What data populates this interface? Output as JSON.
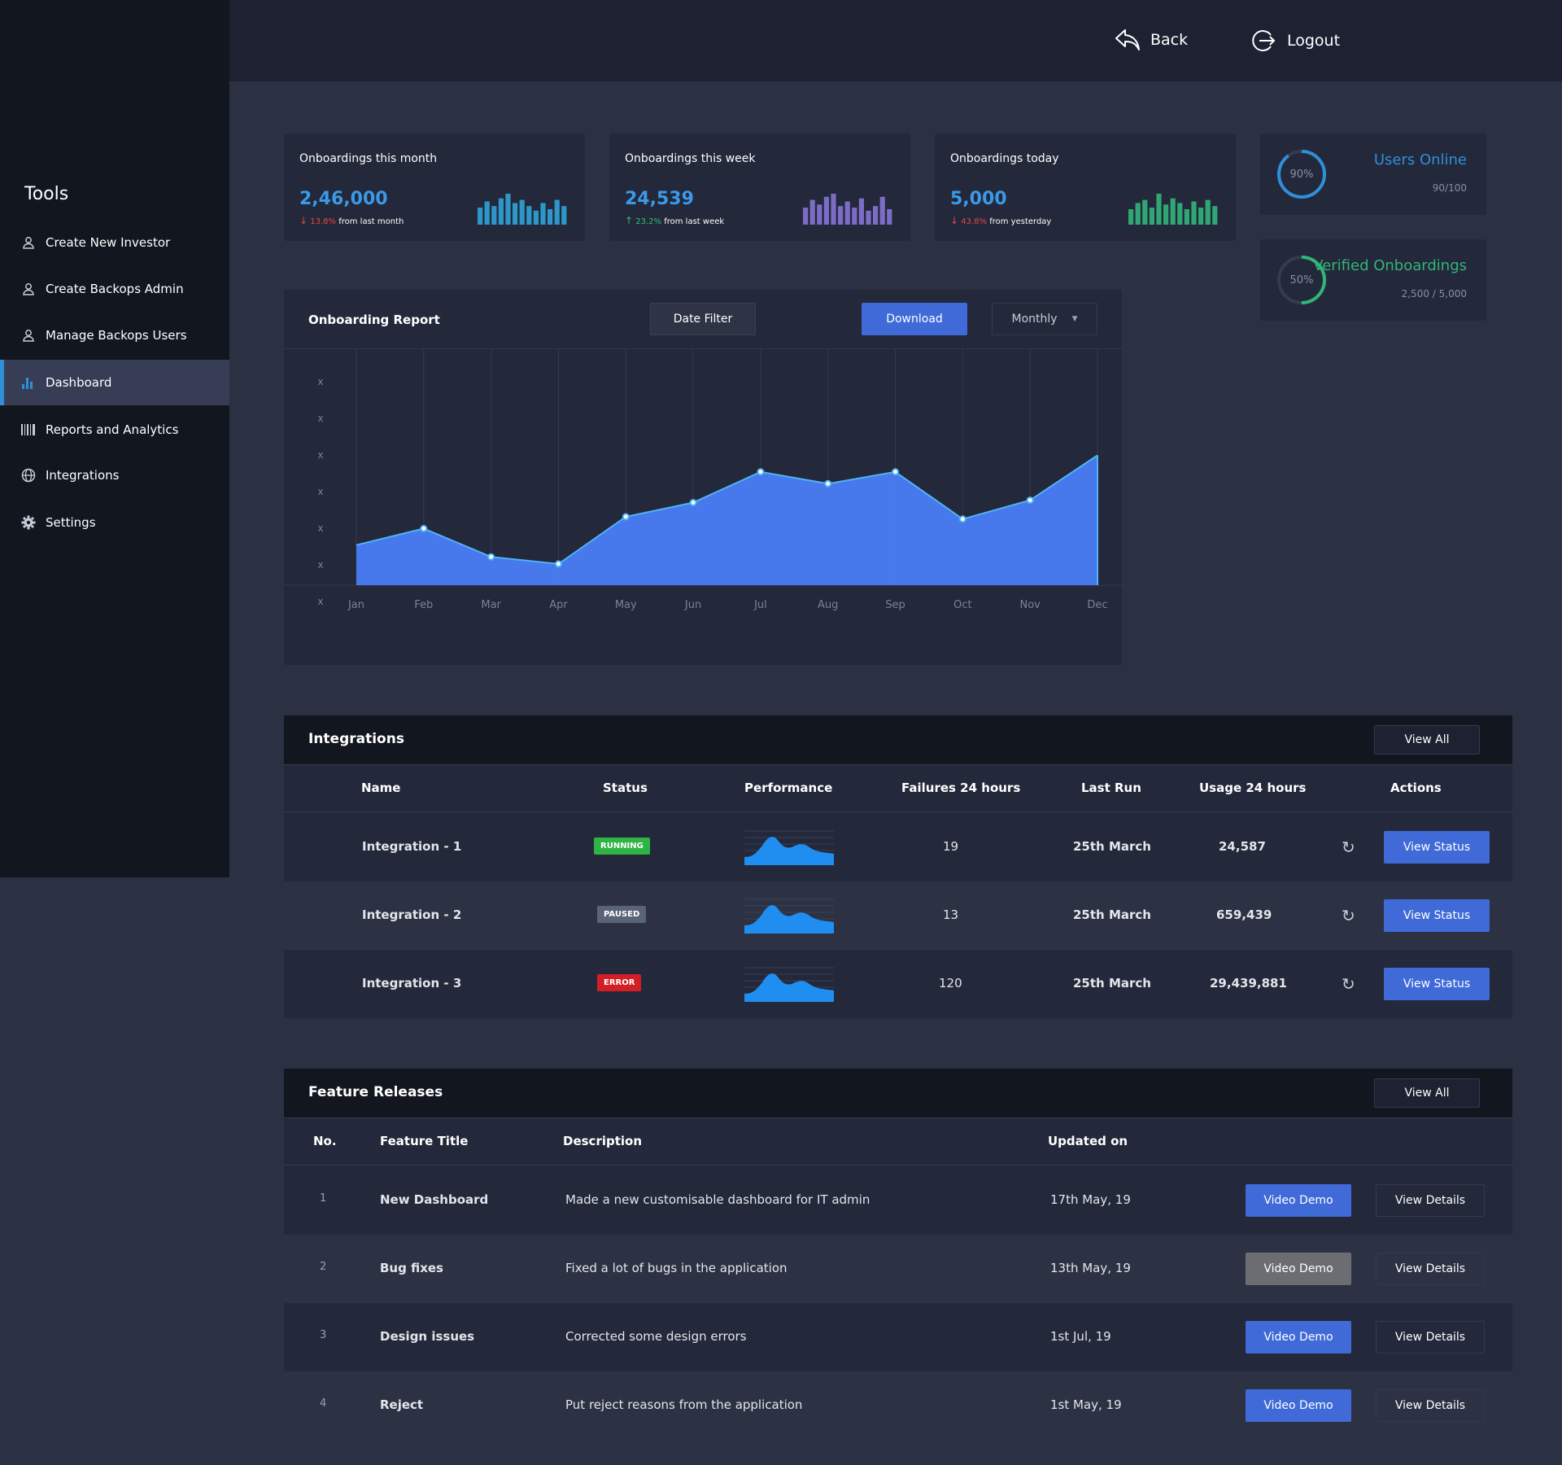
{
  "sidebar": {
    "title": "Tools",
    "items": [
      {
        "label": "Create New Investor",
        "icon": "user-icon"
      },
      {
        "label": "Create Backops Admin",
        "icon": "user-icon"
      },
      {
        "label": "Manage Backops Users",
        "icon": "user-icon"
      },
      {
        "label": "Dashboard",
        "icon": "bar-chart-icon",
        "active": true
      },
      {
        "label": "Reports and Analytics",
        "icon": "barcode-icon"
      },
      {
        "label": "Integrations",
        "icon": "globe-icon"
      },
      {
        "label": "Settings",
        "icon": "gear-icon"
      }
    ]
  },
  "topbar": {
    "back_label": "Back",
    "logout_label": "Logout"
  },
  "stats": [
    {
      "label": "Onboardings this month",
      "value": "2,46,000",
      "pct": "13.8%",
      "suffix": "from last month",
      "direction": "down",
      "bar_color": "#2fa3d8"
    },
    {
      "label": "Onboardings this week",
      "value": "24,539",
      "pct": "23.2%",
      "suffix": "from last week",
      "direction": "up",
      "bar_color": "#8673d6"
    },
    {
      "label": "Onboardings today",
      "value": "5,000",
      "pct": "43.8%",
      "suffix": "from yesterday",
      "direction": "down",
      "bar_color": "#32b47a"
    }
  ],
  "rings": [
    {
      "title": "Users Online",
      "sub": "90/100",
      "pct_label": "90%",
      "fraction": 0.9,
      "color": "#2f8fd8"
    },
    {
      "title": "Verified Onboardings",
      "sub": "2,500 / 5,000",
      "pct_label": "50%",
      "fraction": 0.5,
      "color": "#32b47a"
    }
  ],
  "report": {
    "title": "Onboarding Report",
    "date_filter_label": "Date Filter",
    "download_label": "Download",
    "period_label": "Monthly"
  },
  "chart_data": {
    "type": "area",
    "categories": [
      "Jan",
      "Feb",
      "Mar",
      "Apr",
      "May",
      "Jun",
      "Jul",
      "Aug",
      "Sep",
      "Oct",
      "Nov",
      "Dec"
    ],
    "y_tick_labels": [
      "x",
      "x",
      "x",
      "x",
      "x",
      "x",
      "x"
    ],
    "values": [
      0.17,
      0.24,
      0.12,
      0.09,
      0.29,
      0.35,
      0.48,
      0.43,
      0.48,
      0.28,
      0.36,
      0.55
    ],
    "ylim": [
      0,
      1
    ],
    "color": "#4a7cf5",
    "grid": true
  },
  "integrations": {
    "title": "Integrations",
    "view_all_label": "View All",
    "columns": [
      "Name",
      "Status",
      "Performance",
      "Failures 24 hours",
      "Last Run",
      "Usage 24 hours",
      "Actions"
    ],
    "rows": [
      {
        "name": "Integration - 1",
        "status": "RUNNING",
        "status_color": "#2fb344",
        "failures": "19",
        "last_run": "25th March",
        "usage": "24,587",
        "action_label": "View Status"
      },
      {
        "name": "Integration - 2",
        "status": "PAUSED",
        "status_color": "#5a6477",
        "failures": "13",
        "last_run": "25th March",
        "usage": "659,439",
        "action_label": "View Status"
      },
      {
        "name": "Integration - 3",
        "status": "ERROR",
        "status_color": "#d21f26",
        "failures": "120",
        "last_run": "25th March",
        "usage": "29,439,881",
        "action_label": "View Status"
      }
    ]
  },
  "features": {
    "title": "Feature Releases",
    "view_all_label": "View All",
    "columns": [
      "No.",
      "Feature Title",
      "Description",
      "Updated on"
    ],
    "rows": [
      {
        "no": "1",
        "title": "New Dashboard",
        "description": "Made a new customisable dashboard for IT admin",
        "updated": "17th May, 19",
        "demo_label": "Video Demo",
        "details_label": "View Details",
        "demo_enabled": true
      },
      {
        "no": "2",
        "title": "Bug fixes",
        "description": "Fixed a lot of bugs in the application",
        "updated": "13th May, 19",
        "demo_label": "Video Demo",
        "details_label": "View Details",
        "demo_enabled": false
      },
      {
        "no": "3",
        "title": "Design issues",
        "description": "Corrected some design errors",
        "updated": "1st Jul, 19",
        "demo_label": "Video Demo",
        "details_label": "View Details",
        "demo_enabled": true
      },
      {
        "no": "4",
        "title": "Reject",
        "description": "Put reject reasons from the application",
        "updated": "1st May, 19",
        "demo_label": "Video Demo",
        "details_label": "View Details",
        "demo_enabled": true
      }
    ]
  }
}
